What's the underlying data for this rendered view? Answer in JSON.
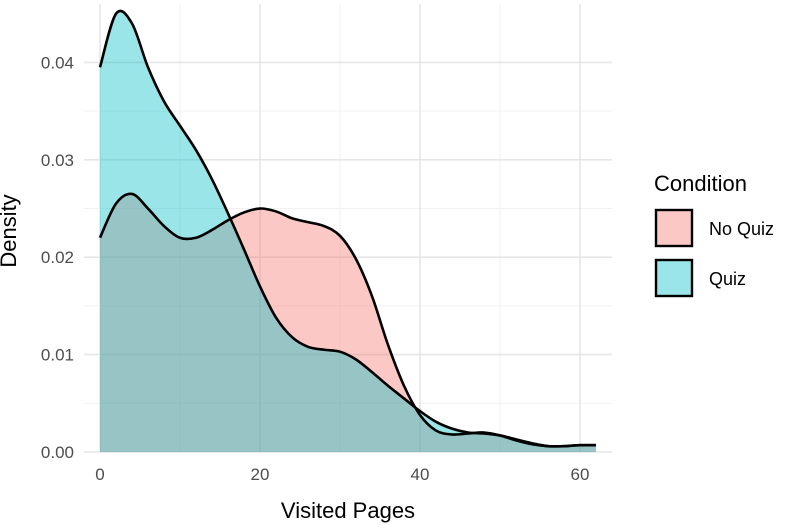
{
  "chart_data": {
    "type": "area",
    "subtype": "density",
    "title": "",
    "xlabel": "Visited Pages",
    "ylabel": "Density",
    "xlim": [
      -2,
      64
    ],
    "ylim": [
      0,
      0.046
    ],
    "x_ticks": [
      0,
      20,
      40,
      60
    ],
    "x_tick_labels": [
      "0",
      "20",
      "40",
      "60"
    ],
    "y_ticks": [
      0,
      0.01,
      0.02,
      0.03,
      0.04
    ],
    "y_tick_labels": [
      "0.00",
      "0.01",
      "0.02",
      "0.03",
      "0.04"
    ],
    "grid": true,
    "legend": {
      "title": "Condition",
      "position": "right",
      "entries": [
        {
          "label": "No Quiz",
          "color": "#F8766D"
        },
        {
          "label": "Quiz",
          "color": "#00BFC4"
        }
      ]
    },
    "x": [
      0,
      2,
      4,
      6,
      8,
      10,
      12,
      14,
      16,
      18,
      20,
      22,
      24,
      26,
      28,
      30,
      32,
      34,
      36,
      38,
      40,
      42,
      44,
      46,
      48,
      50,
      52,
      54,
      56,
      58,
      60,
      62
    ],
    "series": [
      {
        "name": "No Quiz",
        "color": "#F8766D",
        "values": [
          0.022,
          0.0255,
          0.0265,
          0.025,
          0.0232,
          0.022,
          0.022,
          0.0228,
          0.0238,
          0.0246,
          0.025,
          0.0247,
          0.024,
          0.0236,
          0.0232,
          0.0222,
          0.0198,
          0.016,
          0.011,
          0.0068,
          0.0038,
          0.0022,
          0.0018,
          0.0019,
          0.002,
          0.0017,
          0.0012,
          0.0008,
          0.0006,
          0.0006,
          0.0007,
          0.0007
        ]
      },
      {
        "name": "Quiz",
        "color": "#00BFC4",
        "values": [
          0.0395,
          0.045,
          0.044,
          0.0395,
          0.036,
          0.0335,
          0.031,
          0.028,
          0.0245,
          0.0208,
          0.017,
          0.0138,
          0.0118,
          0.0108,
          0.0105,
          0.0103,
          0.0095,
          0.0082,
          0.0068,
          0.0055,
          0.0042,
          0.0031,
          0.0024,
          0.002,
          0.0019,
          0.0017,
          0.0013,
          0.0009,
          0.0006,
          0.0006,
          0.0007,
          0.0007
        ]
      }
    ]
  }
}
